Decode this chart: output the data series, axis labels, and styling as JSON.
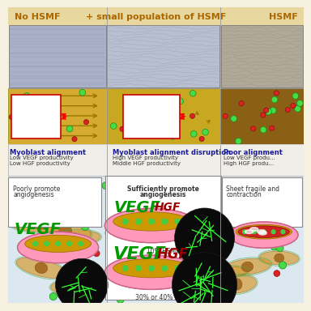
{
  "bg_color": "#f5f0e0",
  "header_color": "#e8d8a0",
  "col_labels": [
    "No HSMF",
    "+ small population of HSMF",
    "HSMF"
  ],
  "label_color": "#aa6600",
  "micro_bg1": "#aaaacc",
  "micro_bg2": "#c0c8d8",
  "micro_bg3": "#b8b0a8",
  "mid_bg1": "#d4a830",
  "mid_bg2": "#c8a020",
  "mid_bg3": "#8a6018",
  "text_bg": "#e8e8f0",
  "col1_align": "Myoblast alignment",
  "col1_sub1": "Low VEGF productivity",
  "col1_sub2": "Low HGF productivity",
  "col1_box": "Poorly promote\nangiogenesis",
  "col2_align": "Myoblast alignment disruption",
  "col2_sub1": "High VEGF productivity",
  "col2_sub2": "Middle HGF productivity",
  "col2_box": "Sufficiently promote\nangiogenesis",
  "col2_hsmf1": "10% HSMF",
  "col2_hsmf2": "30% or 40% HSMF",
  "col3_align": "Poor alignment",
  "col3_sub1": "Low VEGF produ...",
  "col3_sub2": "High HGF produ...",
  "col3_box": "Sheet fragile and\ncontraction",
  "vegf_color": "#009900",
  "hgf_color": "#990000",
  "green_dot": "#44dd44",
  "red_dot": "#dd2222",
  "pink_dish": "#ff88bb",
  "gold_cells": "#cc9900",
  "cell_bg": "#dce8f0"
}
